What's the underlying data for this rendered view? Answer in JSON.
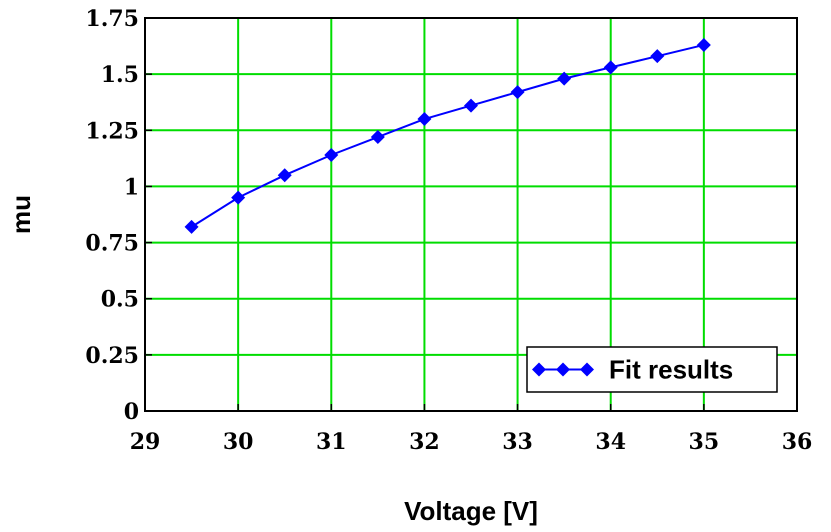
{
  "chart_data": {
    "type": "line",
    "title": "",
    "xlabel": "Voltage [V]",
    "ylabel": "mu",
    "xlim": [
      29,
      36
    ],
    "ylim": [
      0,
      1.75
    ],
    "x_ticks": [
      29,
      30,
      31,
      32,
      33,
      34,
      35,
      36
    ],
    "y_ticks": [
      0,
      0.25,
      0.5,
      0.75,
      1,
      1.25,
      1.5,
      1.75
    ],
    "x_tick_labels": [
      "29",
      "30",
      "31",
      "32",
      "33",
      "34",
      "35",
      "36"
    ],
    "y_tick_labels": [
      "0",
      "0.25",
      "0.5",
      "0.75",
      "1",
      "1.25",
      "1.5",
      "1.75"
    ],
    "grid": true,
    "grid_color": "#00dd00",
    "legend_position": "bottom-right",
    "series": [
      {
        "name": "Fit results",
        "color": "#0000ff",
        "marker": "diamond",
        "x": [
          29.5,
          30.0,
          30.5,
          31.0,
          31.5,
          32.0,
          32.5,
          33.0,
          33.5,
          34.0,
          34.5,
          35.0
        ],
        "y": [
          0.82,
          0.95,
          1.05,
          1.14,
          1.22,
          1.3,
          1.36,
          1.42,
          1.48,
          1.53,
          1.58,
          1.63
        ]
      }
    ]
  }
}
